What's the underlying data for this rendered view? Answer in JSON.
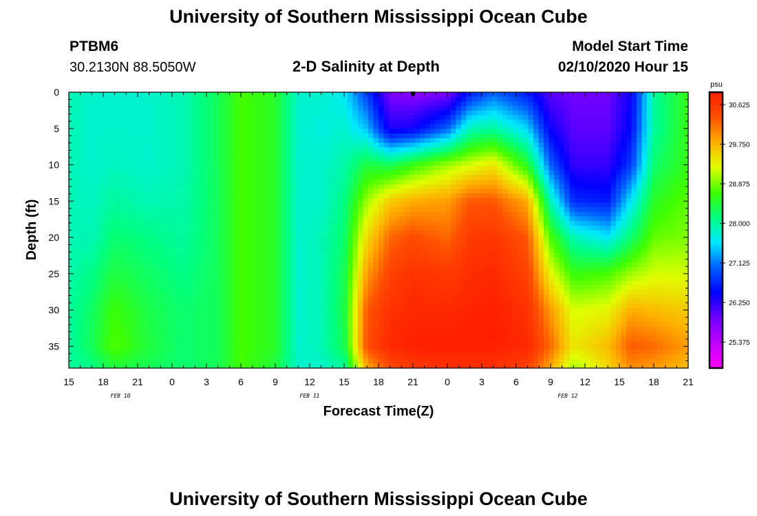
{
  "header": {
    "title": "University of Southern Mississippi Ocean Cube",
    "station_id": "PTBM6",
    "coords": "30.2130N 88.5050W",
    "plot_title": "2-D Salinity at Depth",
    "model_start_label": "Model Start Time",
    "model_start_value": "02/10/2020 Hour 15"
  },
  "footer": {
    "title": "University of Southern Mississippi Ocean Cube"
  },
  "chart_data": {
    "type": "heatmap",
    "title": "2-D Salinity at Depth",
    "xlabel": "Forecast Time(Z)",
    "ylabel": "Depth (ft)",
    "x_tick_labels": [
      "15",
      "18",
      "21",
      "0",
      "3",
      "6",
      "9",
      "12",
      "15",
      "18",
      "21",
      "0",
      "3",
      "6",
      "9",
      "12",
      "15",
      "18",
      "21"
    ],
    "y_tick_labels": [
      "0",
      "5",
      "10",
      "15",
      "20",
      "25",
      "30",
      "35"
    ],
    "y_tick_values": [
      0,
      5,
      10,
      15,
      20,
      25,
      30,
      35
    ],
    "ylim": [
      0,
      38
    ],
    "x_range_hours": [
      0,
      54
    ],
    "date_labels": [
      {
        "text": "FEB 10",
        "hour": 4.5
      },
      {
        "text": "FEB 11",
        "hour": 21
      },
      {
        "text": "FEB 12",
        "hour": 43.5
      }
    ],
    "colorbar": {
      "unit": "psu",
      "min": 24.8,
      "max": 30.9,
      "tick_values": [
        30.625,
        29.75,
        28.875,
        28.0,
        27.125,
        26.25,
        25.375
      ],
      "tick_labels": [
        "30.625",
        "29.750",
        "28.875",
        "28.000",
        "27.125",
        "26.250",
        "25.375"
      ],
      "colors": [
        "#ff00ff",
        "#c000ff",
        "#7000ff",
        "#0000ff",
        "#0060ff",
        "#00e8ff",
        "#00ff80",
        "#40ff00",
        "#e0ff00",
        "#ffb000",
        "#ff5000",
        "#ff2000"
      ]
    },
    "marker": {
      "hour": 30,
      "depth": 0
    },
    "series_profiles_psu": {
      "description": "Salinity (psu) at forecast hour (rows) and depth (cols: 0,5,10,15,20,25,30,35,38 ft)",
      "depths_ft": [
        0,
        5,
        10,
        15,
        20,
        25,
        30,
        35,
        38
      ],
      "profiles": [
        {
          "hour": 0,
          "salinity": [
            27.9,
            27.9,
            27.9,
            27.9,
            27.9,
            27.95,
            28.0,
            28.0,
            28.0
          ]
        },
        {
          "hour": 2,
          "salinity": [
            27.8,
            27.8,
            27.8,
            27.85,
            27.9,
            28.1,
            28.25,
            28.3,
            28.1
          ]
        },
        {
          "hour": 4,
          "salinity": [
            27.8,
            27.8,
            27.85,
            28.0,
            28.2,
            28.4,
            28.65,
            28.75,
            28.4
          ]
        },
        {
          "hour": 7,
          "salinity": [
            27.8,
            27.8,
            27.8,
            27.9,
            28.1,
            28.25,
            28.35,
            28.4,
            28.3
          ]
        },
        {
          "hour": 10,
          "salinity": [
            27.9,
            27.9,
            27.9,
            27.95,
            28.0,
            28.1,
            28.2,
            28.2,
            28.2
          ]
        },
        {
          "hour": 13,
          "salinity": [
            28.3,
            28.3,
            28.3,
            28.3,
            28.3,
            28.3,
            28.3,
            28.3,
            28.3
          ]
        },
        {
          "hour": 15,
          "salinity": [
            28.7,
            28.7,
            28.7,
            28.7,
            28.7,
            28.7,
            28.7,
            28.7,
            28.7
          ]
        },
        {
          "hour": 18,
          "salinity": [
            28.5,
            28.5,
            28.5,
            28.5,
            28.5,
            28.5,
            28.5,
            28.5,
            28.4
          ]
        },
        {
          "hour": 20,
          "salinity": [
            27.8,
            27.8,
            27.8,
            27.8,
            27.8,
            27.8,
            27.8,
            27.8,
            27.8
          ]
        },
        {
          "hour": 22,
          "salinity": [
            27.8,
            27.7,
            27.8,
            27.8,
            27.9,
            27.9,
            27.9,
            27.9,
            27.8
          ]
        },
        {
          "hour": 24,
          "salinity": [
            27.6,
            27.8,
            27.95,
            28.1,
            28.2,
            28.3,
            28.35,
            28.3,
            28.0
          ]
        },
        {
          "hour": 26,
          "salinity": [
            26.8,
            27.4,
            28.4,
            29.0,
            29.5,
            29.9,
            30.3,
            30.4,
            29.8
          ]
        },
        {
          "hour": 28,
          "salinity": [
            25.8,
            26.3,
            28.3,
            29.6,
            30.2,
            30.5,
            30.7,
            30.8,
            30.4
          ]
        },
        {
          "hour": 30,
          "salinity": [
            25.7,
            26.4,
            28.6,
            29.8,
            30.4,
            30.7,
            30.8,
            30.9,
            30.6
          ]
        },
        {
          "hour": 33,
          "salinity": [
            25.8,
            27.0,
            29.0,
            29.9,
            30.2,
            30.6,
            30.8,
            30.9,
            30.7
          ]
        },
        {
          "hour": 35,
          "salinity": [
            26.6,
            27.9,
            29.2,
            30.3,
            30.6,
            30.75,
            30.85,
            30.9,
            30.7
          ]
        },
        {
          "hour": 37,
          "salinity": [
            27.0,
            28.0,
            29.4,
            30.3,
            30.65,
            30.8,
            30.9,
            30.9,
            30.7
          ]
        },
        {
          "hour": 40,
          "salinity": [
            26.6,
            27.5,
            28.5,
            29.8,
            30.3,
            30.5,
            30.7,
            30.8,
            30.5
          ]
        },
        {
          "hour": 42,
          "salinity": [
            26.0,
            26.4,
            27.0,
            27.9,
            28.7,
            29.3,
            29.9,
            30.2,
            29.8
          ]
        },
        {
          "hour": 44,
          "salinity": [
            25.9,
            26.0,
            26.2,
            26.7,
            27.9,
            28.6,
            29.2,
            29.4,
            29.0
          ]
        },
        {
          "hour": 47,
          "salinity": [
            25.9,
            26.0,
            26.2,
            26.6,
            27.6,
            28.7,
            29.3,
            29.7,
            29.5
          ]
        },
        {
          "hour": 49,
          "salinity": [
            26.4,
            26.5,
            26.8,
            27.6,
            28.2,
            29.0,
            29.8,
            30.3,
            30.0
          ]
        },
        {
          "hour": 51,
          "salinity": [
            28.0,
            28.0,
            28.2,
            28.5,
            28.8,
            29.2,
            29.7,
            30.2,
            29.9
          ]
        },
        {
          "hour": 54,
          "salinity": [
            28.6,
            28.6,
            28.6,
            28.8,
            28.9,
            29.2,
            29.6,
            29.9,
            29.7
          ]
        }
      ]
    }
  }
}
